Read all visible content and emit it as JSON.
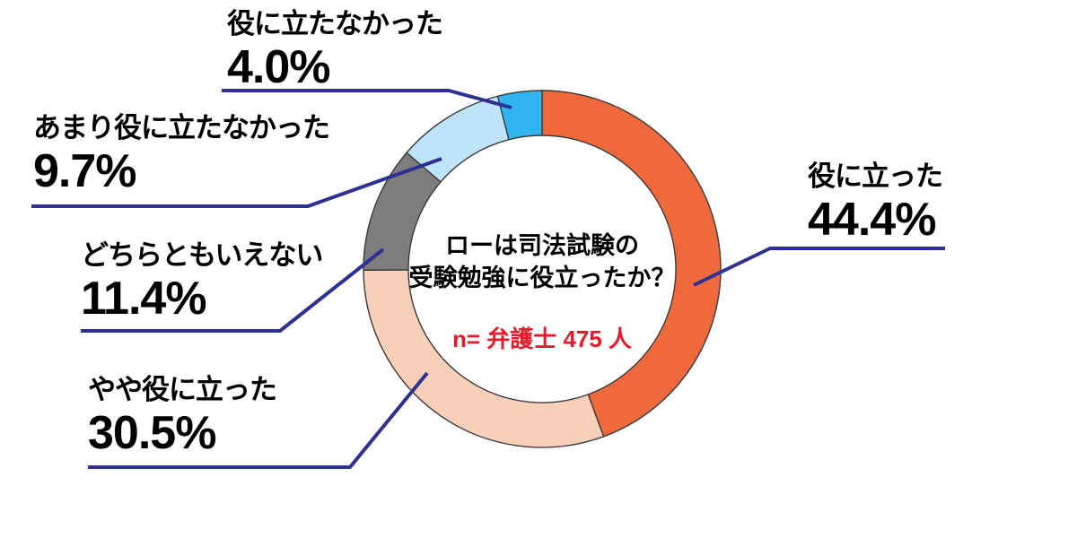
{
  "page": {
    "background_color": "#ffffff"
  },
  "chart_data": {
    "type": "pie",
    "subtype": "donut",
    "direction": "clockwise",
    "start_angle_deg": 0,
    "grid": false,
    "legend_position": "outside-callout-labels",
    "center_title_lines": [
      "ローは司法試験の",
      "受験勉強に役立ったか？"
    ],
    "sample_note": "n= 弁護士 475 人",
    "segments": [
      {
        "label": "役に立った",
        "value_pct": 44.4,
        "pct_label": "44.4%",
        "color": "#F0693C"
      },
      {
        "label": "やや役に立った",
        "value_pct": 30.5,
        "pct_label": "30.5%",
        "color": "#F8CFB8"
      },
      {
        "label": "どちらともいえない",
        "value_pct": 11.4,
        "pct_label": "11.4%",
        "color": "#7D7D7D"
      },
      {
        "label": "あまり役に立たなかった",
        "value_pct": 9.7,
        "pct_label": "9.7%",
        "color": "#BEE4FA"
      },
      {
        "label": "役に立たなかった",
        "value_pct": 4.0,
        "pct_label": "4.0%",
        "color": "#32B4EE"
      }
    ],
    "colors": {
      "leader_line": "#2E3192",
      "segment_outline": "#3B3B3B",
      "label_text": "#000000",
      "sample_note": "#E81928"
    }
  }
}
